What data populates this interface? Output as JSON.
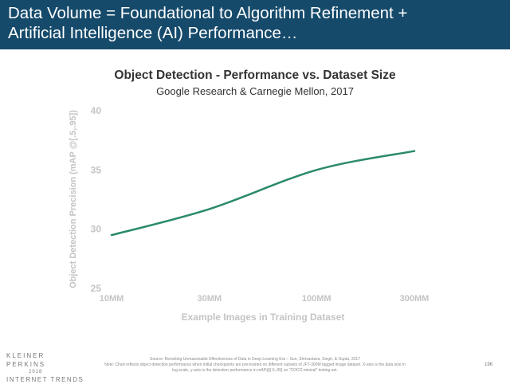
{
  "header": {
    "title_line1": "Data Volume = Foundational to Algorithm Refinement +",
    "title_line2": "Artificial Intelligence (AI) Performance…",
    "background": "#164a6b"
  },
  "chart_data": {
    "type": "line",
    "title": "Object Detection - Performance vs. Dataset Size",
    "subtitle": "Google Research & Carnegie Mellon, 2017",
    "xlabel": "Example Images in Training Dataset",
    "ylabel": "Object Detection Precision (mAP @[.5,.95])",
    "x_scale": "log",
    "x_ticks": [
      {
        "value": 10,
        "label": "10MM"
      },
      {
        "value": 30,
        "label": "30MM"
      },
      {
        "value": 100,
        "label": "100MM"
      },
      {
        "value": 300,
        "label": "300MM"
      }
    ],
    "y_ticks": [
      25,
      30,
      35,
      40
    ],
    "ylim": [
      25,
      40
    ],
    "grid": false,
    "line_color": "#2a8a6a",
    "series": [
      {
        "name": "",
        "x": [
          10,
          30,
          100,
          300
        ],
        "y": [
          29.5,
          31.7,
          35.0,
          36.6
        ]
      }
    ]
  },
  "footer": {
    "logo_line1": "KLEINER PERKINS",
    "logo_line2": "2018",
    "logo_line3": "INTERNET TRENDS",
    "source": "Source: Revisiting Unreasonable Effectiveness of Data in Deep Learning Era – Sun, Shrivastava, Singh, & Gupta, 2017",
    "note": "Note: Chart reflects object detection performance when initial checkpoints are pre-trained on different subsets of JFT-300M tagged image dataset. X-axis is the data size in log-scale, y-axis is the detection performance in mAP@[.5,.95] on \"COCO minival\" testing set.",
    "page_number": "196"
  }
}
